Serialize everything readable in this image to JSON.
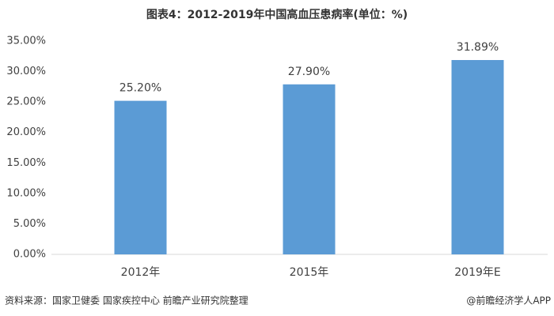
{
  "chart_data": {
    "type": "bar",
    "title": "图表4：2012-2019年中国高血压患病率(单位：%)",
    "categories": [
      "2012年",
      "2015年",
      "2019年E"
    ],
    "values": [
      25.2,
      27.9,
      31.89
    ],
    "value_labels": [
      "25.20%",
      "27.90%",
      "31.89%"
    ],
    "color": "#5b9bd5",
    "ylim": [
      0,
      35
    ],
    "yticks": [
      {
        "value": 0,
        "label": "0.00%"
      },
      {
        "value": 5,
        "label": "5.00%"
      },
      {
        "value": 10,
        "label": "10.00%"
      },
      {
        "value": 15,
        "label": "15.00%"
      },
      {
        "value": 20,
        "label": "20.00%"
      },
      {
        "value": 25,
        "label": "25.00%"
      },
      {
        "value": 30,
        "label": "30.00%"
      },
      {
        "value": 35,
        "label": "35.00%"
      }
    ],
    "grid": false,
    "source": "资料来源：国家卫健委 国家疾控中心 前瞻产业研究院整理",
    "credit": "@前瞻经济学人APP"
  }
}
